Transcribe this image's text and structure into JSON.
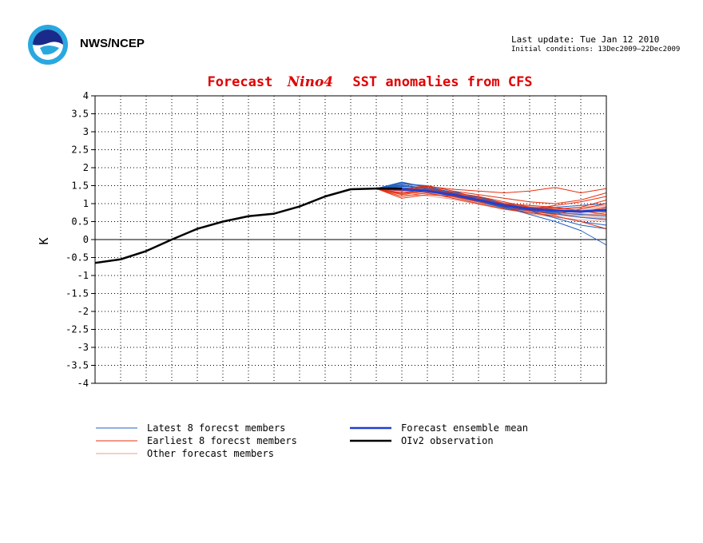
{
  "header": {
    "org": "NWS/NCEP",
    "last_update": "Last update: Tue Jan 12 2010",
    "initial_conditions": "Initial conditions: 13Dec2009–22Dec2009"
  },
  "chart_data": {
    "type": "line",
    "title_prefix": "Forecast",
    "title_region": "Nino4",
    "title_suffix": "SST anomalies from CFS",
    "ylabel": "K",
    "xlabel": "",
    "ylim": [
      -4,
      4
    ],
    "yticks": [
      -4,
      -3.5,
      -3,
      -2.5,
      -2,
      -1.5,
      -1,
      -0.5,
      0,
      0.5,
      1,
      1.5,
      2,
      2.5,
      3,
      3.5,
      4
    ],
    "ytick_labels": [
      "-4",
      "-3.5",
      "-3",
      "-2.5",
      "-2",
      "-1.5",
      "-1",
      "-0.5",
      "0",
      "0.5",
      "1",
      "1.5",
      "2",
      "2.5",
      "3",
      "3.5",
      "4"
    ],
    "x_count": 20,
    "grid": true,
    "legend_position": "bottom",
    "colors": {
      "latest": "#2060c0",
      "earliest": "#e83010",
      "other": "#e8a090",
      "mean": "#2040d0",
      "observation": "#000000",
      "title": "#e00000"
    },
    "observation": {
      "name": "OIv2 observation",
      "x": [
        0,
        1,
        2,
        3,
        4,
        5,
        6,
        7,
        8,
        9,
        10,
        11,
        12
      ],
      "values": [
        -0.65,
        -0.55,
        -0.32,
        0.0,
        0.3,
        0.5,
        0.65,
        0.72,
        0.92,
        1.2,
        1.4,
        1.42,
        1.42
      ]
    },
    "ensemble_mean": {
      "name": "Forecast ensemble mean",
      "x": [
        11,
        12,
        13,
        14,
        15,
        16,
        17,
        18,
        19,
        20
      ],
      "values": [
        1.42,
        1.4,
        1.35,
        1.25,
        1.1,
        0.95,
        0.85,
        0.8,
        0.78,
        0.82
      ]
    },
    "latest_members": [
      {
        "x": [
          11,
          12,
          13,
          14,
          15,
          16,
          17,
          18,
          19,
          20
        ],
        "values": [
          1.42,
          1.6,
          1.45,
          1.3,
          1.1,
          0.9,
          0.7,
          0.5,
          0.25,
          -0.15
        ]
      },
      {
        "x": [
          11,
          12,
          13,
          14,
          15,
          16,
          17,
          18,
          19,
          20
        ],
        "values": [
          1.42,
          1.55,
          1.5,
          1.35,
          1.15,
          0.95,
          0.8,
          0.6,
          0.4,
          0.3
        ]
      },
      {
        "x": [
          11,
          12,
          13,
          14,
          15,
          16,
          17,
          18,
          19,
          20
        ],
        "values": [
          1.42,
          1.5,
          1.4,
          1.25,
          1.05,
          0.88,
          0.8,
          0.75,
          0.7,
          0.65
        ]
      },
      {
        "x": [
          11,
          12,
          13,
          14,
          15,
          16,
          17,
          18,
          19,
          20
        ],
        "values": [
          1.42,
          1.45,
          1.38,
          1.3,
          1.2,
          1.0,
          0.85,
          0.8,
          0.78,
          0.85
        ]
      },
      {
        "x": [
          11,
          12,
          13,
          14,
          15,
          16,
          17,
          18,
          19,
          20
        ],
        "values": [
          1.42,
          1.52,
          1.42,
          1.28,
          1.12,
          0.92,
          0.82,
          0.72,
          0.62,
          0.55
        ]
      },
      {
        "x": [
          11,
          12,
          13,
          14,
          15,
          16,
          17,
          18,
          19,
          20
        ],
        "values": [
          1.42,
          1.4,
          1.35,
          1.2,
          1.05,
          0.9,
          0.85,
          0.9,
          0.95,
          1.0
        ]
      },
      {
        "x": [
          11,
          12,
          13,
          14,
          15,
          16,
          17,
          18,
          19,
          20
        ],
        "values": [
          1.42,
          1.48,
          1.45,
          1.32,
          1.18,
          1.0,
          0.88,
          0.82,
          0.8,
          0.78
        ]
      },
      {
        "x": [
          11,
          12,
          13,
          14,
          15,
          16,
          17,
          18,
          19,
          20
        ],
        "values": [
          1.42,
          1.58,
          1.48,
          1.3,
          1.08,
          0.88,
          0.75,
          0.65,
          0.5,
          0.4
        ]
      }
    ],
    "earliest_members": [
      {
        "x": [
          11,
          12,
          13,
          14,
          15,
          16,
          17,
          18,
          19,
          20
        ],
        "values": [
          1.42,
          1.35,
          1.48,
          1.4,
          1.35,
          1.3,
          1.35,
          1.45,
          1.3,
          1.42
        ]
      },
      {
        "x": [
          11,
          12,
          13,
          14,
          15,
          16,
          17,
          18,
          19,
          20
        ],
        "values": [
          1.42,
          1.15,
          1.25,
          1.2,
          1.05,
          0.95,
          0.9,
          0.85,
          0.9,
          1.1
        ]
      },
      {
        "x": [
          11,
          12,
          13,
          14,
          15,
          16,
          17,
          18,
          19,
          20
        ],
        "values": [
          1.42,
          1.3,
          1.4,
          1.25,
          1.1,
          1.0,
          0.95,
          0.9,
          0.8,
          0.7
        ]
      },
      {
        "x": [
          11,
          12,
          13,
          14,
          15,
          16,
          17,
          18,
          19,
          20
        ],
        "values": [
          1.42,
          1.2,
          1.3,
          1.15,
          1.0,
          0.85,
          0.75,
          0.65,
          0.5,
          0.3
        ]
      },
      {
        "x": [
          11,
          12,
          13,
          14,
          15,
          16,
          17,
          18,
          19,
          20
        ],
        "values": [
          1.42,
          1.4,
          1.5,
          1.35,
          1.25,
          1.15,
          1.05,
          1.0,
          1.1,
          1.3
        ]
      },
      {
        "x": [
          11,
          12,
          13,
          14,
          15,
          16,
          17,
          18,
          19,
          20
        ],
        "values": [
          1.42,
          1.25,
          1.35,
          1.3,
          1.2,
          1.05,
          0.9,
          0.8,
          0.75,
          0.9
        ]
      },
      {
        "x": [
          11,
          12,
          13,
          14,
          15,
          16,
          17,
          18,
          19,
          20
        ],
        "values": [
          1.42,
          1.38,
          1.45,
          1.28,
          1.15,
          1.0,
          0.85,
          0.95,
          1.05,
          1.2
        ]
      },
      {
        "x": [
          11,
          12,
          13,
          14,
          15,
          16,
          17,
          18,
          19,
          20
        ],
        "values": [
          1.42,
          1.28,
          1.38,
          1.22,
          1.08,
          0.92,
          0.8,
          0.7,
          0.85,
          1.0
        ]
      }
    ],
    "other_members": [
      {
        "x": [
          11,
          12,
          13,
          14,
          15,
          16,
          17,
          18,
          19,
          20
        ],
        "values": [
          1.42,
          1.5,
          1.4,
          1.25,
          1.1,
          0.95,
          0.82,
          0.72,
          0.66,
          0.6
        ]
      },
      {
        "x": [
          11,
          12,
          13,
          14,
          15,
          16,
          17,
          18,
          19,
          20
        ],
        "values": [
          1.42,
          1.45,
          1.35,
          1.2,
          1.05,
          0.9,
          0.78,
          0.7,
          0.68,
          0.75
        ]
      },
      {
        "x": [
          11,
          12,
          13,
          14,
          15,
          16,
          17,
          18,
          19,
          20
        ],
        "values": [
          1.42,
          1.3,
          1.28,
          1.18,
          1.02,
          0.86,
          0.72,
          0.62,
          0.55,
          0.5
        ]
      },
      {
        "x": [
          11,
          12,
          13,
          14,
          15,
          16,
          17,
          18,
          19,
          20
        ],
        "values": [
          1.42,
          1.55,
          1.45,
          1.32,
          1.15,
          1.0,
          0.9,
          0.85,
          0.82,
          0.88
        ]
      },
      {
        "x": [
          11,
          12,
          13,
          14,
          15,
          16,
          17,
          18,
          19,
          20
        ],
        "values": [
          1.42,
          1.35,
          1.32,
          1.22,
          1.08,
          0.94,
          0.86,
          0.84,
          0.9,
          0.95
        ]
      },
      {
        "x": [
          11,
          12,
          13,
          14,
          15,
          16,
          17,
          18,
          19,
          20
        ],
        "values": [
          1.42,
          1.4,
          1.38,
          1.28,
          1.12,
          0.96,
          0.84,
          0.76,
          0.7,
          0.68
        ]
      },
      {
        "x": [
          11,
          12,
          13,
          14,
          15,
          16,
          17,
          18,
          19,
          20
        ],
        "values": [
          1.42,
          1.25,
          1.22,
          1.12,
          0.98,
          0.84,
          0.74,
          0.68,
          0.62,
          0.58
        ]
      },
      {
        "x": [
          11,
          12,
          13,
          14,
          15,
          16,
          17,
          18,
          19,
          20
        ],
        "values": [
          1.42,
          1.48,
          1.42,
          1.3,
          1.16,
          1.02,
          0.92,
          0.88,
          0.86,
          0.92
        ]
      },
      {
        "x": [
          11,
          12,
          13,
          14,
          15,
          16,
          17,
          18,
          19,
          20
        ],
        "values": [
          1.42,
          1.38,
          1.3,
          1.2,
          1.06,
          0.92,
          0.8,
          0.74,
          0.72,
          0.7
        ]
      },
      {
        "x": [
          11,
          12,
          13,
          14,
          15,
          16,
          17,
          18,
          19,
          20
        ],
        "values": [
          1.42,
          1.42,
          1.36,
          1.24,
          1.1,
          0.98,
          0.9,
          0.86,
          0.8,
          0.76
        ]
      }
    ],
    "legend": [
      {
        "label": "Latest 8 forecst members",
        "key": "latest",
        "width": 1
      },
      {
        "label": "Earliest 8 forecst members",
        "key": "earliest",
        "width": 1
      },
      {
        "label": "Other forecast members",
        "key": "other",
        "width": 1
      },
      {
        "label": "Forecast ensemble mean",
        "key": "mean",
        "width": 2.5
      },
      {
        "label": "OIv2 observation",
        "key": "observation",
        "width": 2.5
      }
    ]
  }
}
